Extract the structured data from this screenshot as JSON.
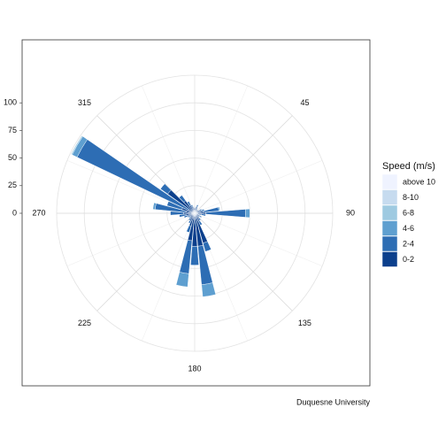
{
  "chart_data": {
    "type": "windrose",
    "caption": "Duquesne University",
    "legend_title": "Speed (m/s)",
    "x": [
      0,
      10,
      20,
      30,
      40,
      50,
      60,
      70,
      80,
      90,
      100,
      110,
      120,
      130,
      140,
      150,
      160,
      170,
      180,
      190,
      200,
      210,
      220,
      230,
      240,
      250,
      260,
      270,
      280,
      290,
      300,
      310,
      320,
      330,
      340,
      350
    ],
    "xlim": [
      0,
      360
    ],
    "xticks": [
      45,
      90,
      135,
      180,
      225,
      270,
      315
    ],
    "ylim": [
      0,
      125
    ],
    "yticks": [
      0,
      25,
      50,
      75,
      100
    ],
    "grid": true,
    "series": [
      {
        "name": "above 10",
        "color": "#eff3ff",
        "values": [
          0,
          0,
          0,
          0,
          0,
          0,
          0,
          0,
          0,
          0,
          0,
          0,
          0,
          0,
          0,
          0,
          0,
          0,
          0,
          0,
          0,
          0,
          0,
          0,
          0,
          0,
          0,
          0,
          0,
          0,
          0,
          0,
          0,
          0,
          0,
          0
        ]
      },
      {
        "name": "8-10",
        "color": "#c6dbef",
        "values": [
          0,
          0,
          0,
          0,
          0,
          0,
          0,
          0,
          0,
          0,
          0,
          0,
          0,
          0,
          0,
          0,
          0,
          0,
          0,
          0,
          0,
          0,
          0,
          0,
          0,
          0,
          0,
          0,
          0,
          0,
          0,
          0,
          0,
          0,
          0,
          0
        ]
      },
      {
        "name": "6-8",
        "color": "#9ecae1",
        "values": [
          0,
          0,
          0,
          0,
          0,
          0,
          0,
          0,
          0,
          0,
          0,
          0,
          0,
          0,
          0,
          0,
          0,
          0,
          0,
          0,
          0,
          0,
          0,
          0,
          0,
          0,
          0,
          0,
          0,
          0,
          1,
          0,
          0,
          0,
          0,
          0
        ]
      },
      {
        "name": "4-6",
        "color": "#5e9fd0",
        "values": [
          0,
          0,
          0,
          0,
          0,
          0,
          0,
          0,
          1,
          4,
          0,
          0,
          0,
          0,
          0,
          0,
          0,
          11,
          0,
          12,
          0,
          0,
          0,
          0,
          0,
          0,
          0,
          0,
          2,
          0,
          5,
          0,
          0,
          0,
          0,
          0
        ]
      },
      {
        "name": "2-4",
        "color": "#2d6db4",
        "values": [
          0,
          1,
          2,
          1,
          0,
          0,
          2,
          3,
          14,
          36,
          4,
          1,
          2,
          1,
          2,
          4,
          8,
          35,
          17,
          30,
          6,
          2,
          2,
          1,
          2,
          4,
          6,
          12,
          28,
          14,
          112,
          8,
          6,
          4,
          2,
          1
        ]
      },
      {
        "name": "0-2",
        "color": "#0b3f8c",
        "values": [
          4,
          5,
          6,
          4,
          3,
          4,
          5,
          6,
          8,
          10,
          6,
          4,
          5,
          4,
          6,
          8,
          28,
          30,
          30,
          25,
          12,
          8,
          6,
          5,
          5,
          6,
          8,
          10,
          8,
          12,
          6,
          30,
          14,
          8,
          6,
          5
        ]
      }
    ]
  }
}
